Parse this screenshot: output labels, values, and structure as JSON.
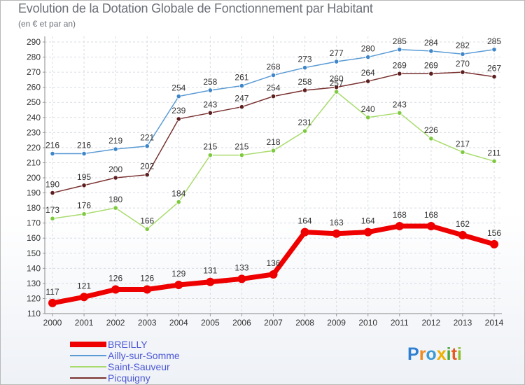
{
  "header": {
    "title": "Evolution de la Dotation Globale de Fonctionnement par Habitant",
    "subtitle": "(en € et par an)"
  },
  "brand": {
    "letters": [
      "P",
      "r",
      "o",
      "x",
      "i",
      "t",
      "i"
    ],
    "colors": [
      "#2e7fd1",
      "#ef8a1f",
      "#3b9ad6",
      "#f0b000",
      "#4aa83a",
      "#e65a1e",
      "#8fbf2f"
    ]
  },
  "chart_data": {
    "type": "line",
    "title": "Evolution de la Dotation Globale de Fonctionnement par Habitant",
    "subtitle": "(en € et par an)",
    "xlabel": "",
    "ylabel": "",
    "categories": [
      "2000",
      "2001",
      "2002",
      "2003",
      "2004",
      "2005",
      "2006",
      "2007",
      "2008",
      "2009",
      "2010",
      "2011",
      "2012",
      "2013",
      "2014"
    ],
    "ylim": [
      110,
      290
    ],
    "yticks": [
      110,
      120,
      130,
      140,
      150,
      160,
      170,
      180,
      190,
      200,
      210,
      220,
      230,
      240,
      250,
      260,
      270,
      280,
      290
    ],
    "grid": true,
    "legend_position": "bottom-left",
    "series": [
      {
        "name": "Ailly-sur-Somme",
        "color": "#5b9bd5",
        "marker": "#3f86c8",
        "values": [
          216,
          216,
          219,
          221,
          254,
          258,
          261,
          268,
          273,
          277,
          280,
          285,
          284,
          282,
          285
        ]
      },
      {
        "name": "Picquigny",
        "color": "#7a3030",
        "marker": "#5c1e1e",
        "values": [
          190,
          195,
          200,
          202,
          239,
          243,
          247,
          254,
          258,
          260,
          264,
          269,
          269,
          270,
          267
        ]
      },
      {
        "name": "Saint-Sauveur",
        "color": "#a9dc6e",
        "marker": "#7ec940",
        "values": [
          173,
          176,
          180,
          166,
          184,
          215,
          215,
          218,
          231,
          257,
          240,
          243,
          226,
          217,
          211
        ]
      },
      {
        "name": "BREILLY",
        "color": "#ee0000",
        "marker": "#ee0000",
        "values": [
          117,
          121,
          126,
          126,
          129,
          131,
          133,
          136,
          164,
          163,
          164,
          168,
          168,
          162,
          156
        ]
      }
    ],
    "legend_order": [
      "BREILLY",
      "Ailly-sur-Somme",
      "Saint-Sauveur",
      "Picquigny"
    ]
  }
}
